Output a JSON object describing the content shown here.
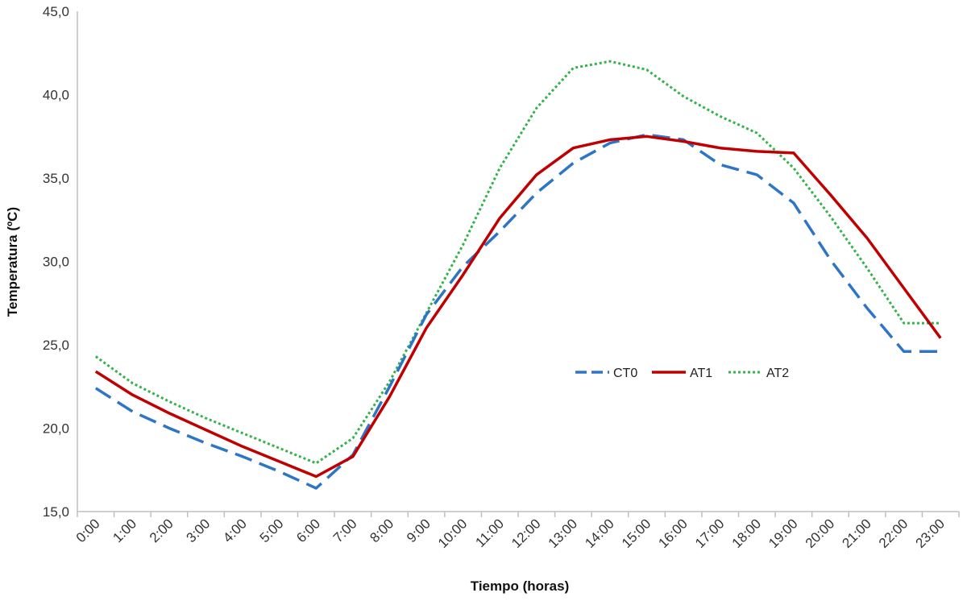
{
  "chart_data": {
    "type": "line",
    "xlabel": "Tiempo (horas)",
    "ylabel": "Temperatura (ºC)",
    "ylim": [
      15,
      45
    ],
    "yticks": [
      "15,0",
      "20,0",
      "25,0",
      "30,0",
      "35,0",
      "40,0",
      "45,0"
    ],
    "grid": false,
    "legend_position": "center-right",
    "categories": [
      "0:00",
      "1:00",
      "2:00",
      "3:00",
      "4:00",
      "5:00",
      "6:00",
      "7:00",
      "8:00",
      "9:00",
      "10:00",
      "11:00",
      "12:00",
      "13:00",
      "14:00",
      "15:00",
      "16:00",
      "17:00",
      "18:00",
      "19:00",
      "20:00",
      "21:00",
      "22:00",
      "23:00"
    ],
    "series": [
      {
        "name": "CT0",
        "color": "#2e75c6",
        "style": "dashed",
        "values": [
          22.4,
          21.0,
          20.0,
          19.1,
          18.3,
          17.4,
          16.4,
          18.4,
          22.5,
          26.8,
          29.7,
          31.8,
          34.1,
          35.9,
          37.1,
          37.6,
          37.3,
          35.8,
          35.2,
          33.5,
          30.1,
          27.2,
          24.6,
          24.6
        ]
      },
      {
        "name": "AT1",
        "color": "#c00000",
        "style": "solid",
        "values": [
          23.4,
          22.0,
          20.9,
          19.9,
          18.9,
          18.0,
          17.1,
          18.3,
          21.9,
          26.0,
          29.2,
          32.6,
          35.2,
          36.8,
          37.3,
          37.5,
          37.2,
          36.8,
          36.6,
          36.5,
          34.0,
          31.4,
          28.4,
          25.4
        ]
      },
      {
        "name": "AT2",
        "color": "#33b34a",
        "style": "dotted",
        "values": [
          24.3,
          22.7,
          21.6,
          20.6,
          19.7,
          18.8,
          17.9,
          19.4,
          22.8,
          26.9,
          31.0,
          35.6,
          39.2,
          41.6,
          42.0,
          41.5,
          39.9,
          38.7,
          37.7,
          35.6,
          32.7,
          29.6,
          26.3,
          26.3
        ]
      }
    ]
  }
}
